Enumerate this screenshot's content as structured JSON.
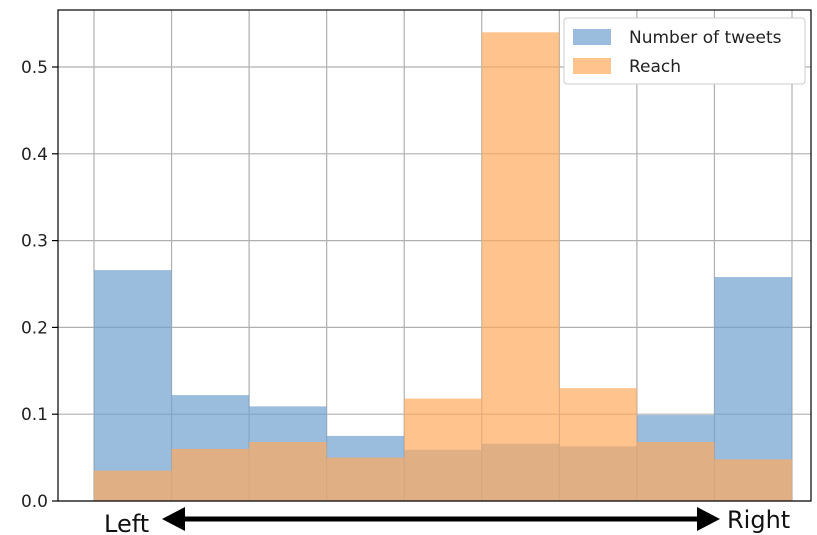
{
  "chart_data": {
    "type": "bar",
    "subtype": "overlapping-histogram",
    "bins": 9,
    "title": "",
    "xlabel": "",
    "ylabel": "",
    "ylim": [
      0,
      0.56
    ],
    "yticks": [
      0.0,
      0.1,
      0.2,
      0.3,
      0.4,
      0.5
    ],
    "ytick_labels": [
      "0.0",
      "0.1",
      "0.2",
      "0.3",
      "0.4",
      "0.5"
    ],
    "grid": true,
    "legend_position": "top-right",
    "series": [
      {
        "name": "Number of tweets",
        "color": "#6f9fcf",
        "values": [
          0.266,
          0.122,
          0.109,
          0.075,
          0.059,
          0.066,
          0.063,
          0.099,
          0.258
        ]
      },
      {
        "name": "Reach",
        "color": "#ffa95e",
        "values": [
          0.035,
          0.06,
          0.068,
          0.05,
          0.118,
          0.54,
          0.13,
          0.068,
          0.048
        ]
      }
    ],
    "axis_annotation": {
      "left_label": "Left",
      "right_label": "Right"
    }
  }
}
